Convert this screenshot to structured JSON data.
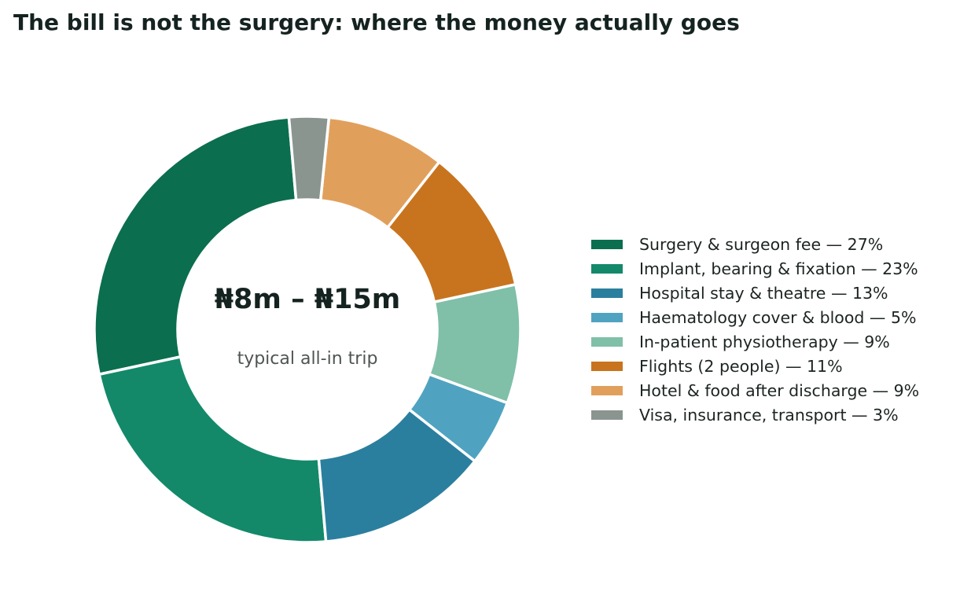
{
  "chart_data": {
    "type": "pie",
    "title": "The bill is not the surgery: where the money actually goes",
    "center_text": "₦8m – ₦15m",
    "center_subtext": "typical all-in trip",
    "legend_position": "right",
    "slices": [
      {
        "label": "Surgery & surgeon fee — 27%",
        "value": 27,
        "color": "#0b6e4f"
      },
      {
        "label": "Implant, bearing & fixation — 23%",
        "value": 23,
        "color": "#13896a"
      },
      {
        "label": "Hospital stay & theatre — 13%",
        "value": 13,
        "color": "#2a7f9e"
      },
      {
        "label": "Haematology cover & blood — 5%",
        "value": 5,
        "color": "#4fa3c0"
      },
      {
        "label": "In-patient physiotherapy — 9%",
        "value": 9,
        "color": "#80bfa8"
      },
      {
        "label": "Flights (2 people) — 11%",
        "value": 11,
        "color": "#c8741e"
      },
      {
        "label": "Hotel & food after discharge — 9%",
        "value": 9,
        "color": "#e0a05c"
      },
      {
        "label": "Visa, insurance, transport — 3%",
        "value": 3,
        "color": "#8a9590"
      }
    ]
  }
}
